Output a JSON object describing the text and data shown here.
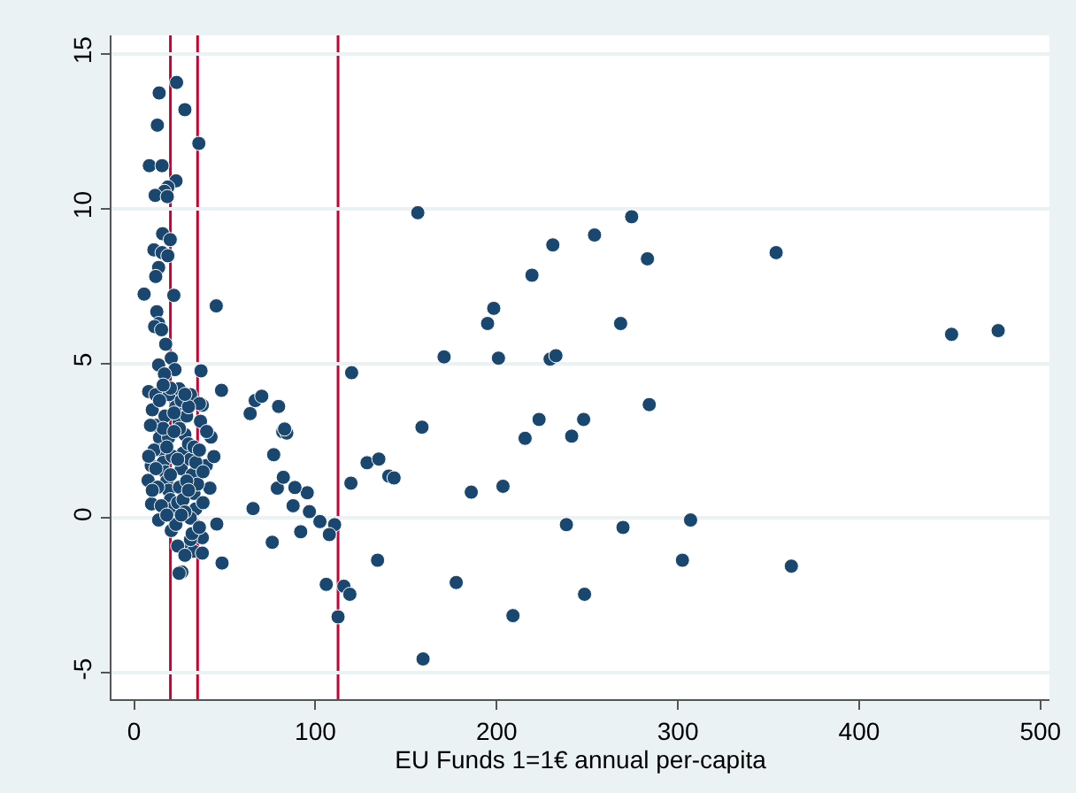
{
  "chart_data": {
    "type": "scatter",
    "xlabel": "EU Funds 1=1€ annual per-capita",
    "xlim": [
      -12.5,
      505
    ],
    "xticks": [
      0,
      100,
      200,
      300,
      400,
      500
    ],
    "ylim": [
      -5.85,
      15.6
    ],
    "yticks": [
      -5,
      0,
      5,
      10,
      15
    ],
    "grid": "y",
    "marker": "circle",
    "ref_lines": [
      {
        "axis": "x",
        "value": 20,
        "color": "#c10534"
      },
      {
        "axis": "x",
        "value": 35,
        "color": "#c10534"
      },
      {
        "axis": "x",
        "value": 112.5,
        "color": "#c10534"
      }
    ],
    "series": [
      {
        "color": "#1a476f",
        "x": [
          156.5,
          254,
          231,
          219.5,
          198.4,
          195,
          171,
          201,
          229.5,
          232.7,
          120,
          158.8,
          223.4,
          248,
          215.7,
          241.4,
          186,
          203.5,
          238.5,
          177.7,
          209,
          248.5,
          159.4,
          134.3,
          106,
          115.7,
          119,
          112.5,
          110.6,
          107.7,
          102.5,
          91.9,
          96.7,
          87.7,
          95.5,
          88.7,
          79,
          82.3,
          77,
          76.2,
          65.6,
          82,
          84.2,
          83,
          79.7,
          64,
          66.8,
          70.4,
          128.5,
          135,
          140.5,
          143.4,
          119.6,
          45.3,
          48.2,
          36.9,
          45.6,
          48.5,
          274.5,
          283.2,
          354.2,
          268.4,
          451,
          476.7,
          284.2,
          269.7,
          307,
          302.5,
          362.6,
          23.4,
          13.8,
          28,
          12.8,
          35.7,
          8.4,
          15.4,
          23.1,
          18.6,
          16.7,
          11.6,
          18.3,
          15.7,
          19.9,
          10.9,
          15.4,
          18.6,
          13.5,
          11.9,
          5.5,
          21.9,
          12.5,
          13.5,
          11.3,
          15.1,
          17.4,
          20.5,
          13.5,
          22.5,
          16.7,
          8,
          11.9,
          19.3,
          24.8,
          31.1,
          37.6,
          26.3,
          24.8,
          28,
          32.8,
          37.6,
          37.6,
          31.1,
          20.5,
          13.5,
          9.6,
          41.8,
          7.7,
          9.4,
          39.8,
          44,
          42.4,
          36.6,
          36,
          24.8,
          10,
          12,
          14,
          15,
          16,
          17,
          18,
          19,
          20,
          21,
          23,
          24,
          25,
          26,
          27,
          28,
          29,
          30,
          31,
          32,
          33,
          34,
          35,
          11,
          13,
          15,
          17,
          19,
          21,
          23,
          25,
          27,
          29,
          31,
          33,
          14,
          16,
          18,
          20,
          22,
          24,
          26,
          28,
          30,
          32,
          12,
          18,
          22,
          26,
          30,
          34,
          36,
          38,
          40,
          8,
          9,
          10,
          20,
          16,
          28,
          38,
          36,
          24,
          28
        ],
        "values": [
          9.87,
          9.15,
          8.83,
          7.85,
          6.78,
          6.29,
          5.21,
          5.17,
          5.14,
          5.25,
          4.7,
          2.94,
          3.19,
          3.19,
          2.58,
          2.65,
          0.84,
          1.03,
          -0.21,
          -2.08,
          -3.15,
          -2.46,
          -4.55,
          -1.36,
          -2.14,
          -2.2,
          -2.46,
          -3.19,
          -0.21,
          -0.53,
          -0.11,
          -0.44,
          0.21,
          0.4,
          0.82,
          0.99,
          0.97,
          1.32,
          2.05,
          -0.78,
          0.31,
          2.79,
          2.75,
          2.88,
          3.61,
          3.38,
          3.8,
          3.94,
          1.79,
          1.91,
          1.36,
          1.3,
          1.13,
          6.86,
          4.13,
          4.76,
          -0.19,
          -1.45,
          9.74,
          8.38,
          8.58,
          6.29,
          5.94,
          6.06,
          3.67,
          -0.3,
          -0.06,
          -1.36,
          -1.55,
          14.08,
          13.74,
          13.2,
          12.7,
          12.11,
          11.39,
          11.39,
          10.9,
          10.7,
          10.56,
          10.43,
          10.39,
          9.19,
          9.0,
          8.67,
          8.58,
          8.48,
          8.1,
          7.81,
          7.24,
          7.2,
          6.67,
          6.29,
          6.19,
          6.09,
          5.62,
          5.17,
          4.95,
          4.8,
          4.66,
          4.09,
          3.99,
          3.99,
          4.18,
          3.99,
          3.65,
          -1.74,
          -1.78,
          -0.97,
          -1.07,
          -1.13,
          -0.63,
          -0.69,
          -0.4,
          -0.06,
          0.46,
          0.97,
          1.22,
          1.7,
          1.7,
          1.99,
          2.62,
          3.13,
          3.7,
          3.13,
          3.5,
          3.0,
          2.6,
          2.2,
          1.8,
          1.5,
          1.2,
          0.9,
          0.6,
          0.3,
          -0.2,
          0.5,
          1.0,
          1.6,
          2.1,
          2.7,
          3.3,
          2.4,
          1.9,
          1.4,
          0.8,
          0.3,
          1.1,
          2.2,
          1.0,
          0.4,
          3.3,
          2.6,
          2.0,
          3.6,
          2.9,
          0.6,
          1.2,
          0.0,
          2.3,
          3.8,
          2.9,
          2.3,
          1.4,
          2.8,
          1.9,
          3.8,
          0.2,
          0.9,
          -0.5,
          1.6,
          0.1,
          3.4,
          0.1,
          3.6,
          1.8,
          2.2,
          1.5,
          2.8,
          2.0,
          3.0,
          0.9,
          4.2,
          4.3,
          4.0,
          0.5,
          -0.3,
          -0.9,
          -1.2
        ]
      }
    ]
  }
}
